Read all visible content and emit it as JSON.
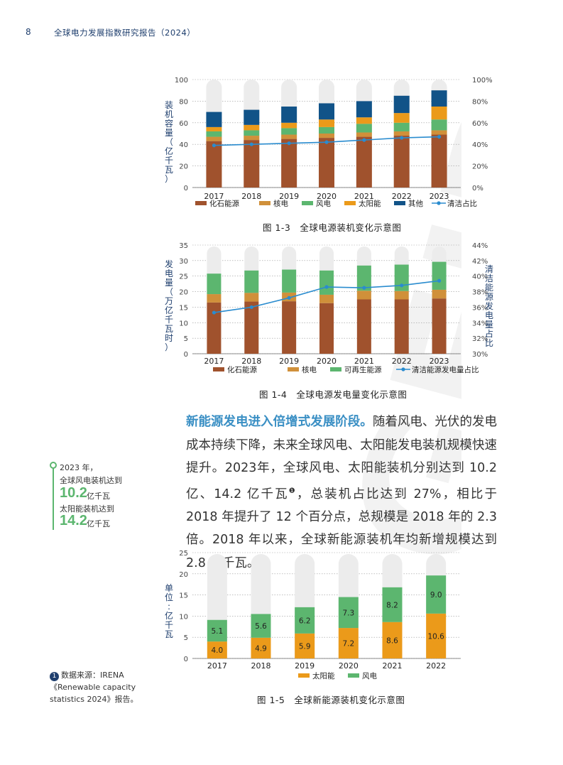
{
  "header": {
    "page_number": "8",
    "title": "全球电力发展指数研究报告（2024）"
  },
  "chart_data": [
    {
      "type": "bar",
      "caption": "图 1-3　全球电源装机变化示意图",
      "ylabel_left": [
        "装",
        "机",
        "容",
        "量",
        "（",
        "亿",
        "千",
        "瓦",
        "）"
      ],
      "categories": [
        "2017",
        "2018",
        "2019",
        "2020",
        "2021",
        "2022",
        "2023"
      ],
      "ylim": [
        0,
        100
      ],
      "y2lim": [
        0,
        100
      ],
      "yticks": [
        "0",
        "20",
        "40",
        "60",
        "80",
        "100"
      ],
      "y2ticks": [
        "0%",
        "20%",
        "40%",
        "60%",
        "80%",
        "100%"
      ],
      "stacked": true,
      "series": [
        {
          "name": "化石能源",
          "color": "#a0522d",
          "values": [
            43,
            44,
            45,
            46,
            47,
            48,
            49
          ]
        },
        {
          "name": "核电",
          "color": "#d0903a",
          "values": [
            4,
            4,
            4,
            4,
            4,
            4,
            4
          ]
        },
        {
          "name": "风电",
          "color": "#5cb66f",
          "values": [
            5,
            5,
            6,
            6,
            8,
            8,
            10
          ]
        },
        {
          "name": "太阳能",
          "color": "#eb9a1a",
          "values": [
            4,
            5,
            5,
            7,
            6,
            9,
            12
          ]
        },
        {
          "name": "其他",
          "color": "#115388",
          "values": [
            14,
            14,
            15,
            15,
            15,
            16,
            15
          ]
        }
      ],
      "line": {
        "name": "清洁占比",
        "color": "#2a8ccf",
        "values": [
          39,
          40,
          41,
          42,
          44,
          46,
          47
        ]
      },
      "legend_position": "bottom"
    },
    {
      "type": "bar",
      "caption": "图 1-4　全球电源发电量变化示意图",
      "ylabel_left": [
        "发",
        "电",
        "量",
        "（",
        "万",
        "亿",
        "千",
        "瓦",
        "时",
        "）"
      ],
      "ylabel_right": [
        "清",
        "洁",
        "能",
        "源",
        "发",
        "电",
        "量",
        "占",
        "比"
      ],
      "categories": [
        "2017",
        "2018",
        "2019",
        "2020",
        "2021",
        "2022",
        "2023"
      ],
      "ylim": [
        0,
        35
      ],
      "y2lim": [
        30,
        44
      ],
      "yticks": [
        "0",
        "5",
        "10",
        "15",
        "20",
        "25",
        "30",
        "35"
      ],
      "y2ticks": [
        "30%",
        "32%",
        "34%",
        "36%",
        "38%",
        "40%",
        "42%",
        "44%"
      ],
      "stacked": true,
      "series": [
        {
          "name": "化石能源",
          "color": "#a0522d",
          "values": [
            16.5,
            16.8,
            16.9,
            16.3,
            17.5,
            17.5,
            17.8
          ]
        },
        {
          "name": "核电",
          "color": "#d0903a",
          "values": [
            2.7,
            2.8,
            2.8,
            2.7,
            2.8,
            2.7,
            2.8
          ]
        },
        {
          "name": "可再生能源",
          "color": "#5cb66f",
          "values": [
            6.6,
            7.2,
            7.4,
            7.8,
            8.1,
            8.5,
            9.0
          ]
        }
      ],
      "line": {
        "name": "清洁能源发电量占比",
        "color": "#2a8ccf",
        "values": [
          35.3,
          36.0,
          37.2,
          38.6,
          38.5,
          38.8,
          39.4
        ]
      },
      "legend_position": "bottom"
    },
    {
      "type": "bar",
      "caption": "图 1-5　全球新能源装机变化示意图",
      "ylabel_left": [
        "单",
        "位",
        ":",
        "亿",
        "千",
        "瓦"
      ],
      "categories": [
        "2017",
        "2018",
        "2019",
        "2020",
        "2021",
        "2022"
      ],
      "ylim": [
        0,
        25
      ],
      "yticks": [
        "0",
        "5",
        "10",
        "15",
        "20",
        "25"
      ],
      "stacked": true,
      "series": [
        {
          "name": "太阳能",
          "color": "#eb9a1a",
          "values": [
            4.0,
            4.9,
            5.9,
            7.2,
            8.6,
            10.6
          ],
          "labels": [
            "4.0",
            "4.9",
            "5.9",
            "7.2",
            "8.6",
            "10.6"
          ]
        },
        {
          "name": "风电",
          "color": "#5cb66f",
          "values": [
            5.1,
            5.6,
            6.2,
            7.3,
            8.2,
            9.0
          ],
          "labels": [
            "5.1",
            "5.6",
            "6.2",
            "7.3",
            "8.2",
            "9.0"
          ]
        }
      ],
      "legend_position": "bottom"
    }
  ],
  "paragraph": {
    "highlight": "新能源发电进入倍增式发展阶段。",
    "text_a": "随着风电、光伏的发电成本持续下降，未来全球风电、太阳能发电装机规模快速提升。2023年，全球风电、太阳能装机分别达到 10.2 亿、14.2 亿千瓦",
    "footnote_mark": "❶",
    "text_b": "，总装机占比达到 27%，相比于 2018 年提升了 12 个百分点，总规模是 2018 年的 2.3 倍。2018 年以来，全球新能源装机年均新增规模达到 2.8 亿千瓦。"
  },
  "sidebar": {
    "line1": "2023 年，",
    "line2": "全球风电装机达到",
    "wind_value": "10.2",
    "wind_unit": "亿千瓦",
    "line3": "太阳能装机达到",
    "solar_value": "14.2",
    "solar_unit": "亿千瓦"
  },
  "footnote": {
    "mark": "1",
    "text1": "数据来源：IRENA",
    "text2": "《Renewable capacity",
    "text3": "statistics 2024》报告。"
  },
  "watermark": "GEIDCO"
}
